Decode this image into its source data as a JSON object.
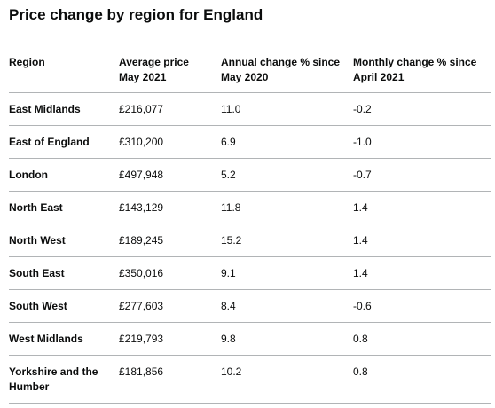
{
  "table": {
    "caption": "Price change by region for England",
    "headers": [
      "Region",
      "Average price May 2021",
      "Annual change % since May 2020",
      "Monthly change % since April 2021"
    ],
    "rows": [
      {
        "region": "East Midlands",
        "average_price": "£216,077",
        "annual_change": "11.0",
        "monthly_change": "-0.2"
      },
      {
        "region": "East of England",
        "average_price": "£310,200",
        "annual_change": "6.9",
        "monthly_change": "-1.0"
      },
      {
        "region": "London",
        "average_price": "£497,948",
        "annual_change": "5.2",
        "monthly_change": "-0.7"
      },
      {
        "region": "North East",
        "average_price": "£143,129",
        "annual_change": "11.8",
        "monthly_change": "1.4"
      },
      {
        "region": "North West",
        "average_price": "£189,245",
        "annual_change": "15.2",
        "monthly_change": "1.4"
      },
      {
        "region": "South East",
        "average_price": "£350,016",
        "annual_change": "9.1",
        "monthly_change": "1.4"
      },
      {
        "region": "South West",
        "average_price": "£277,603",
        "annual_change": "8.4",
        "monthly_change": "-0.6"
      },
      {
        "region": "West Midlands",
        "average_price": "£219,793",
        "annual_change": "9.8",
        "monthly_change": "0.8"
      },
      {
        "region": "Yorkshire and the Humber",
        "average_price": "£181,856",
        "annual_change": "10.2",
        "monthly_change": "0.8"
      }
    ]
  }
}
